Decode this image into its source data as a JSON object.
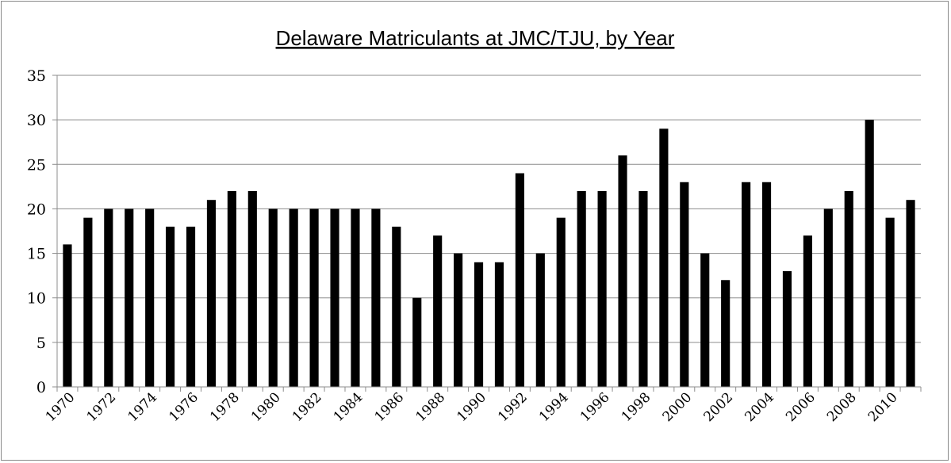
{
  "chart_data": {
    "type": "bar",
    "title": "Delaware Matriculants at JMC/TJU, by Year",
    "xlabel": "",
    "ylabel": "",
    "ylim": [
      0,
      35
    ],
    "yticks": [
      0,
      5,
      10,
      15,
      20,
      25,
      30,
      35
    ],
    "grid": true,
    "legend": "none",
    "bar_color": "#000000",
    "grid_color": "#8c8c8c",
    "categories": [
      "1970",
      "1971",
      "1972",
      "1973",
      "1974",
      "1975",
      "1976",
      "1977",
      "1978",
      "1979",
      "1980",
      "1981",
      "1982",
      "1983",
      "1984",
      "1985",
      "1986",
      "1987",
      "1988",
      "1989",
      "1990",
      "1991",
      "1992",
      "1993",
      "1994",
      "1995",
      "1996",
      "1997",
      "1998",
      "1999",
      "2000",
      "2001",
      "2002",
      "2003",
      "2004",
      "2005",
      "2006",
      "2007",
      "2008",
      "2009",
      "2010",
      "2011"
    ],
    "tick_labels_shown": [
      "1970",
      "1972",
      "1974",
      "1976",
      "1978",
      "1980",
      "1982",
      "1984",
      "1986",
      "1988",
      "1990",
      "1992",
      "1994",
      "1996",
      "1998",
      "2000",
      "2002",
      "2004",
      "2006",
      "2008",
      "2010"
    ],
    "values": [
      16,
      19,
      20,
      20,
      20,
      18,
      18,
      21,
      22,
      22,
      20,
      20,
      20,
      20,
      20,
      20,
      18,
      10,
      17,
      15,
      14,
      14,
      24,
      15,
      19,
      22,
      22,
      26,
      22,
      29,
      23,
      15,
      12,
      23,
      23,
      13,
      17,
      20,
      22,
      30,
      19,
      21
    ]
  }
}
